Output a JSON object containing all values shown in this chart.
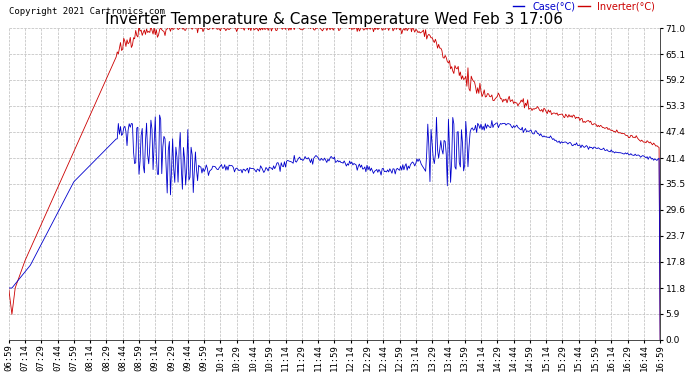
{
  "title": "Inverter Temperature & Case Temperature Wed Feb 3 17:06",
  "copyright": "Copyright 2021 Cartronics.com",
  "legend_case": "Case(°C)",
  "legend_inverter": "Inverter(°C)",
  "yticks": [
    0.0,
    5.9,
    11.8,
    17.8,
    23.7,
    29.6,
    35.5,
    41.4,
    47.4,
    53.3,
    59.2,
    65.1,
    71.0
  ],
  "ymin": 0.0,
  "ymax": 71.0,
  "bg_color": "#ffffff",
  "grid_color": "#bbbbbb",
  "case_color": "#0000cc",
  "inverter_color": "#cc0000",
  "title_fontsize": 11,
  "label_fontsize": 7,
  "tick_fontsize": 6.5,
  "copyright_fontsize": 6.5,
  "figwidth": 6.9,
  "figheight": 3.75,
  "dpi": 100
}
